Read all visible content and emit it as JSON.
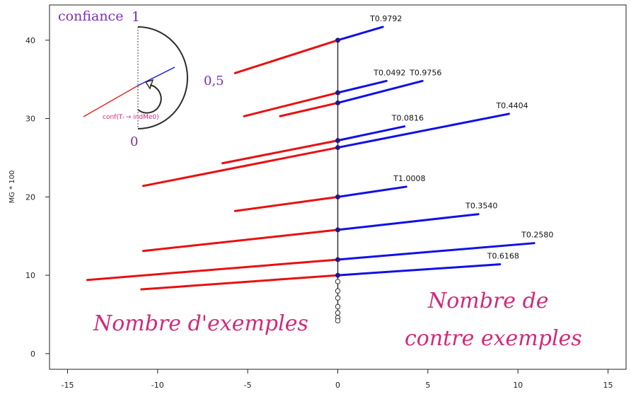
{
  "chart_data": {
    "type": "line",
    "title": "",
    "xlabel": "",
    "ylabel": "MG * 100",
    "xlim": [
      -16,
      16
    ],
    "ylim": [
      -2,
      44.5
    ],
    "xticks": [
      -15,
      -10,
      -5,
      0,
      5,
      10,
      15
    ],
    "yticks": [
      0,
      10,
      20,
      30,
      40
    ],
    "segments": [
      {
        "label": "T0.9792",
        "y": 40.0,
        "x_left": -5.7,
        "y_left": 35.8,
        "x_right": 2.5,
        "y_right": 41.7
      },
      {
        "label": "T0.0492",
        "y": 33.3,
        "x_left": -5.2,
        "y_left": 30.3,
        "x_right": 2.7,
        "y_right": 34.8
      },
      {
        "label": "T0.9756",
        "y": 32.0,
        "x_left": -3.2,
        "y_left": 30.3,
        "x_right": 4.7,
        "y_right": 34.8
      },
      {
        "label": "T0.0816",
        "y": 27.2,
        "x_left": -6.4,
        "y_left": 24.3,
        "x_right": 3.7,
        "y_right": 29.0
      },
      {
        "label": "T0.4404",
        "y": 26.3,
        "x_left": -10.8,
        "y_left": 21.4,
        "x_right": 9.5,
        "y_right": 30.6
      },
      {
        "label": "T1.0008",
        "y": 20.0,
        "x_left": -5.7,
        "y_left": 18.2,
        "x_right": 3.8,
        "y_right": 21.3
      },
      {
        "label": "T0.3540",
        "y": 15.8,
        "x_left": -10.8,
        "y_left": 13.1,
        "x_right": 7.8,
        "y_right": 17.8
      },
      {
        "label": "T0.2580",
        "y": 12.0,
        "x_left": -13.9,
        "y_left": 9.4,
        "x_right": 10.9,
        "y_right": 14.1
      },
      {
        "label": "T0.6168",
        "y": 10.0,
        "x_left": -10.9,
        "y_left": 8.2,
        "x_right": 9.0,
        "y_right": 11.4
      }
    ],
    "open_points": [
      {
        "x": 0,
        "y": 9.2
      },
      {
        "x": 0,
        "y": 8.0
      },
      {
        "x": 0,
        "y": 7.1
      },
      {
        "x": 0,
        "y": 6.0
      },
      {
        "x": 0,
        "y": 5.2
      },
      {
        "x": 0,
        "y": 4.6
      },
      {
        "x": 0,
        "y": 4.2
      }
    ],
    "annotations": {
      "left": "Nombre d'exemples",
      "right_line1": "Nombre de",
      "right_line2": "contre exemples"
    },
    "inset": {
      "title": "confiance",
      "top_value": "1",
      "mid_value": "0,5",
      "bottom_value": "0",
      "formula": "conf(Tᵢ → indMe0)"
    },
    "colors": {
      "left_segment": "#e81010",
      "right_segment": "#1010e8",
      "axis_line": "#333333",
      "annotation": "#d12a7a",
      "inset_text": "#7b2fb5"
    }
  }
}
